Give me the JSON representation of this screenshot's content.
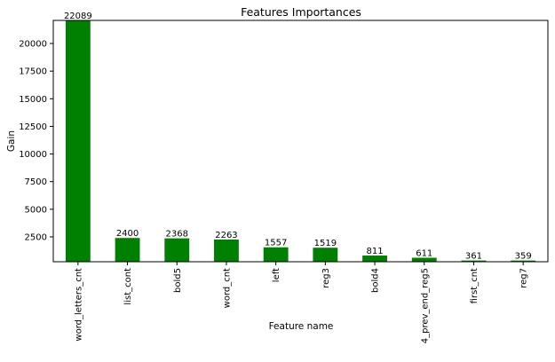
{
  "chart_data": {
    "type": "bar",
    "title": "Features Importances",
    "xlabel": "Feature name",
    "ylabel": "Gain",
    "categories": [
      "word_letters_cnt",
      "list_cont",
      "bold5",
      "word_cnt",
      "left",
      "reg3",
      "bold4",
      "4_prev_end_reg5",
      "first_cnt",
      "reg7"
    ],
    "values": [
      22089,
      2400,
      2368,
      2263,
      1557,
      1519,
      811,
      611,
      361,
      359
    ],
    "value_labels": [
      "22089",
      "2400",
      "2368",
      "2263",
      "1557",
      "1519",
      "811",
      "611",
      "361",
      "359"
    ],
    "yticks": [
      2500,
      5000,
      7500,
      10000,
      12500,
      15000,
      17500,
      20000
    ],
    "ytick_labels": [
      "2500",
      "5000",
      "7500",
      "10000",
      "12500",
      "15000",
      "17500",
      "20000"
    ],
    "ylim": [
      250,
      22089
    ],
    "grid": false,
    "bar_color": "#008000"
  }
}
